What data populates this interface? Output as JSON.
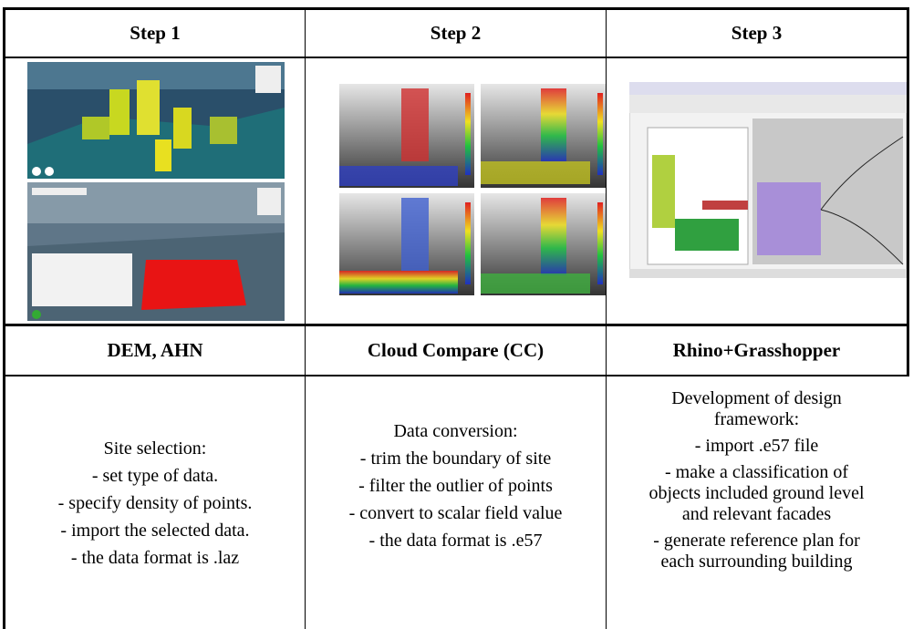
{
  "table": {
    "header": [
      "Step 1",
      "Step 2",
      "Step 3"
    ],
    "tools": [
      "DEM, AHN",
      "Cloud Compare (CC)",
      "Rhino+Grasshopper"
    ],
    "descriptions": [
      [
        "Site selection:",
        "- set type of data.",
        "- specify density of points.",
        "- import the selected data.",
        "- the data format is .laz"
      ],
      [
        "Data conversion:",
        "- trim the boundary of site",
        "- filter the outlier of points",
        "- convert to scalar field value",
        "- the data format is .e57"
      ],
      [
        "Development of design framework:",
        "- import .e57 file",
        "- make a classification of objects included ground level and relevant facades",
        "- generate reference plan for each surrounding building"
      ]
    ]
  }
}
